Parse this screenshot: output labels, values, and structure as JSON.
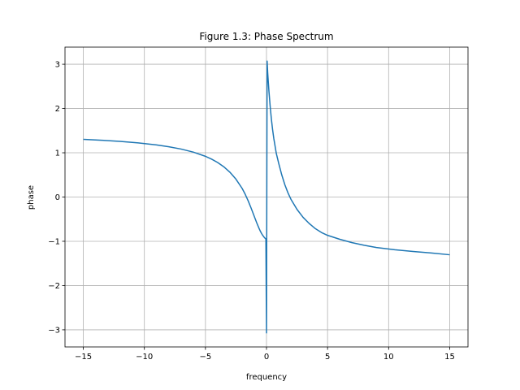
{
  "chart_data": {
    "type": "line",
    "title": "Figure 1.3: Phase Spectrum",
    "xlabel": "frequency",
    "ylabel": "phase",
    "xlim": [
      -16.5,
      16.5
    ],
    "ylim": [
      -3.387,
      3.387
    ],
    "grid": true,
    "x_ticks": [
      -15,
      -10,
      -5,
      0,
      5,
      10,
      15
    ],
    "x_tick_labels": [
      "−15",
      "−10",
      "−5",
      "0",
      "5",
      "10",
      "15"
    ],
    "y_ticks": [
      -3,
      -2,
      -1,
      0,
      1,
      2,
      3
    ],
    "y_tick_labels": [
      "−3",
      "−2",
      "−1",
      "0",
      "1",
      "2",
      "3"
    ],
    "series": [
      {
        "color": "#1f77b4",
        "x": [
          -15,
          -13.5,
          -12,
          -10.5,
          -9,
          -8,
          -7,
          -6,
          -5,
          -4.5,
          -4,
          -3.5,
          -3,
          -2.5,
          -2,
          -1.75,
          -1.5,
          -1.25,
          -1,
          -0.8,
          -0.6,
          -0.5,
          -0.4,
          -0.3,
          -0.2,
          -0.1,
          -0.05,
          0,
          0.05,
          0.1,
          0.2,
          0.3,
          0.4,
          0.5,
          0.6,
          0.8,
          1,
          1.25,
          1.5,
          1.75,
          2,
          2.5,
          3,
          3.5,
          4,
          4.5,
          5,
          6,
          7,
          8,
          9,
          10.5,
          12,
          13.5,
          15
        ],
        "y": [
          1.3045,
          1.2832,
          1.2567,
          1.2227,
          1.1775,
          1.1365,
          1.0842,
          1.0154,
          0.9203,
          0.8571,
          0.7798,
          0.684,
          0.562,
          0.4033,
          0.1975,
          0.0662,
          -0.0857,
          -0.2568,
          -0.4392,
          -0.5824,
          -0.7152,
          -0.7737,
          -0.8253,
          -0.8694,
          -0.9062,
          -0.9359,
          -0.948,
          -3.07,
          3.07,
          2.8,
          2.39,
          2.05,
          1.76,
          1.52,
          1.32,
          0.99,
          0.76,
          0.5,
          0.28,
          0.1,
          -0.05,
          -0.28,
          -0.46,
          -0.599,
          -0.7141,
          -0.8011,
          -0.8654,
          -0.955,
          -1.03,
          -1.09,
          -1.14,
          -1.19,
          -1.23,
          -1.265,
          -1.3045
        ]
      }
    ]
  }
}
